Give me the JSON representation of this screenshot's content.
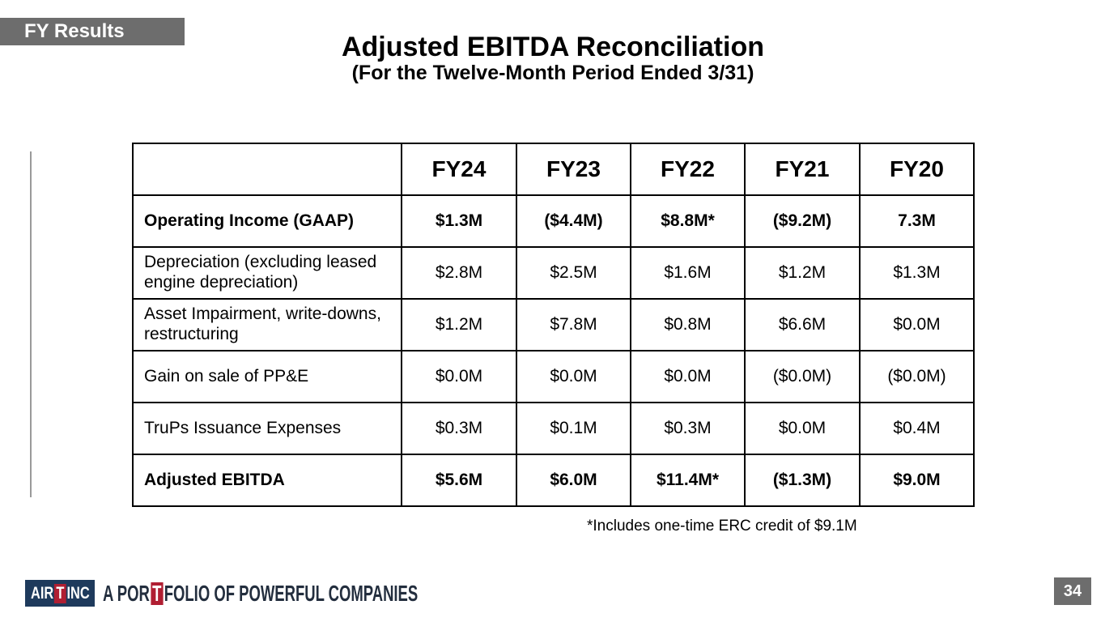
{
  "badge": {
    "label": "FY Results"
  },
  "title": {
    "main": "Adjusted EBITDA Reconciliation",
    "subtitle": "(For the Twelve-Month Period Ended 3/31)"
  },
  "table": {
    "columns": [
      "",
      "FY24",
      "FY23",
      "FY22",
      "FY21",
      "FY20"
    ],
    "rows": [
      {
        "label": "Operating Income (GAAP)",
        "bold": true,
        "values": [
          "$1.3M",
          "($4.4M)",
          "$8.8M*",
          "($9.2M)",
          "7.3M"
        ]
      },
      {
        "label": "Depreciation (excluding leased engine depreciation)",
        "bold": false,
        "values": [
          "$2.8M",
          "$2.5M",
          "$1.6M",
          "$1.2M",
          "$1.3M"
        ]
      },
      {
        "label": "Asset Impairment, write-downs, restructuring",
        "bold": false,
        "values": [
          "$1.2M",
          "$7.8M",
          "$0.8M",
          "$6.6M",
          "$0.0M"
        ]
      },
      {
        "label": "Gain on sale of PP&E",
        "bold": false,
        "values": [
          "$0.0M",
          "$0.0M",
          "$0.0M",
          "($0.0M)",
          "($0.0M)"
        ]
      },
      {
        "label": "TruPs Issuance Expenses",
        "bold": false,
        "values": [
          "$0.3M",
          "$0.1M",
          "$0.3M",
          "$0.0M",
          "$0.4M"
        ]
      },
      {
        "label": "Adjusted EBITDA",
        "bold": true,
        "values": [
          "$5.6M",
          "$6.0M",
          "$11.4M*",
          "($1.3M)",
          "$9.0M"
        ]
      }
    ]
  },
  "footnote": {
    "text": "*Includes one-time ERC credit of $9.1M"
  },
  "logo": {
    "mark_air": "AIR",
    "mark_t": "T",
    "mark_inc": "INC",
    "tagline_pre": "A POR",
    "tagline_t": "T",
    "tagline_post": "FOLIO OF POWERFUL COMPANIES"
  },
  "page_number": "34",
  "colors": {
    "badge_gray": "#6d6d6d",
    "logo_navy": "#1e3a5c",
    "logo_red": "#b01e32",
    "tagline_navy": "#232e3e",
    "table_border": "#000000",
    "accent_line": "#9a9a9a"
  }
}
